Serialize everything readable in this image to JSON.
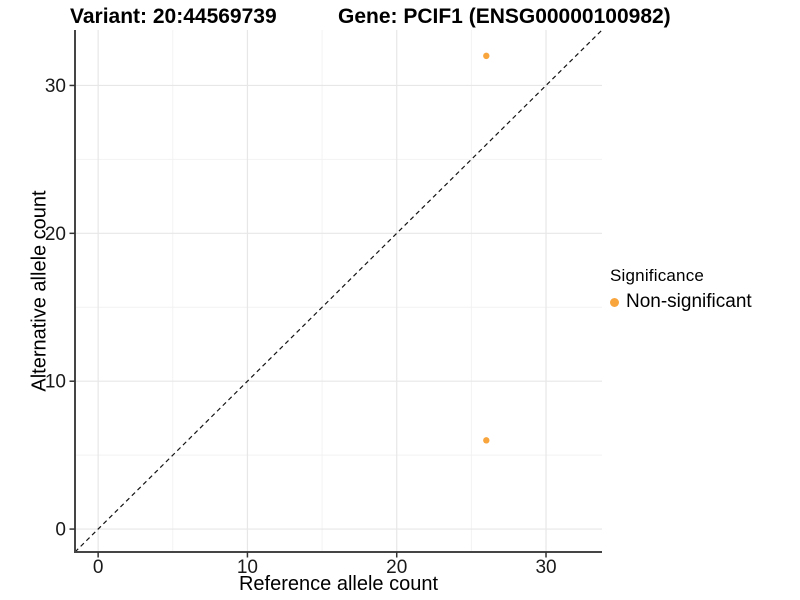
{
  "chart_data": {
    "type": "scatter",
    "titles": [
      "Variant: 20:44569739",
      "Gene: PCIF1 (ENSG00000100982)"
    ],
    "xlabel": "Reference allele count",
    "ylabel": "Alternative allele count",
    "xlim": [
      -1.55,
      33.75
    ],
    "ylim": [
      -1.55,
      33.75
    ],
    "x_ticks": [
      0,
      10,
      20,
      30
    ],
    "y_ticks": [
      0,
      10,
      20,
      30
    ],
    "x_minor_ticks": [
      5,
      15,
      25
    ],
    "y_minor_ticks": [
      5,
      15,
      25
    ],
    "grid": "major+minor",
    "legend_position": "right",
    "legend": {
      "title": "Significance",
      "entries": [
        {
          "label": "Non-significant",
          "color": "#F8A53E",
          "marker": "circle"
        }
      ]
    },
    "series": [
      {
        "name": "Non-significant",
        "color": "#F8A53E",
        "points": [
          {
            "x": 26,
            "y": 32
          },
          {
            "x": 26,
            "y": 6
          }
        ]
      }
    ],
    "reference_line": {
      "kind": "identity",
      "equation": "y = x",
      "style": "dashed",
      "color": "#141414"
    }
  },
  "style": {
    "grid_major": "#E7E7E7",
    "grid_minor": "#F2F2F2",
    "axis_color": "#454545",
    "tick_color": "#333333",
    "tick_label_color": "#1a1a1a",
    "point_color": "#F8A53E"
  }
}
